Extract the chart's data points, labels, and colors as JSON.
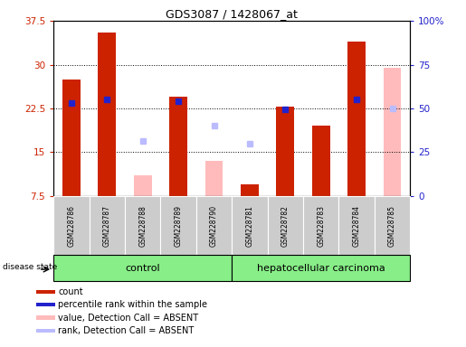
{
  "title": "GDS3087 / 1428067_at",
  "samples": [
    "GSM228786",
    "GSM228787",
    "GSM228788",
    "GSM228789",
    "GSM228790",
    "GSM228781",
    "GSM228782",
    "GSM228783",
    "GSM228784",
    "GSM228785"
  ],
  "count_values": [
    27.5,
    35.5,
    null,
    24.5,
    null,
    9.5,
    22.8,
    19.5,
    34.0,
    null
  ],
  "absent_value_bars": [
    null,
    null,
    11.0,
    null,
    13.5,
    null,
    null,
    null,
    null,
    29.5
  ],
  "rank_dots_present": [
    23.5,
    24.0,
    null,
    23.8,
    null,
    null,
    22.3,
    null,
    24.0,
    null
  ],
  "absent_rank_dots": [
    null,
    null,
    17.0,
    null,
    19.5,
    16.5,
    null,
    null,
    null,
    22.5
  ],
  "ylim": [
    7.5,
    37.5
  ],
  "yticks": [
    7.5,
    15.0,
    22.5,
    30.0,
    37.5
  ],
  "ytick_labels": [
    "7.5",
    "15",
    "22.5",
    "30",
    "37.5"
  ],
  "right_pct": [
    0,
    25,
    50,
    75,
    100
  ],
  "right_ylabels": [
    "0",
    "25",
    "50",
    "75",
    "100%"
  ],
  "colors": {
    "count_bar": "#cc2200",
    "rank_dot_present": "#2222cc",
    "absent_value_bar": "#ffbbbb",
    "absent_rank_dot": "#bbbbff",
    "tick_left": "#cc2200",
    "tick_right": "#2222cc",
    "background_label": "#cccccc",
    "background_group": "#88ee88"
  },
  "legend_items": [
    {
      "label": "count",
      "color": "#cc2200"
    },
    {
      "label": "percentile rank within the sample",
      "color": "#2222cc"
    },
    {
      "label": "value, Detection Call = ABSENT",
      "color": "#ffbbbb"
    },
    {
      "label": "rank, Detection Call = ABSENT",
      "color": "#bbbbff"
    }
  ],
  "bar_width": 0.5,
  "n_control": 5,
  "n_cancer": 5
}
